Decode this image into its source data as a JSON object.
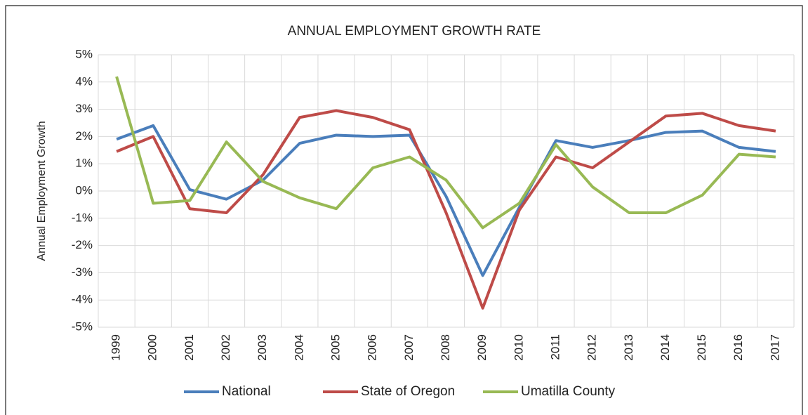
{
  "chart_data": {
    "type": "line",
    "title": "ANNUAL EMPLOYMENT GROWTH RATE",
    "y_label": "Annual Employment Growth",
    "categories": [
      "1999",
      "2000",
      "2001",
      "2002",
      "2003",
      "2004",
      "2005",
      "2006",
      "2007",
      "2008",
      "2009",
      "2010",
      "2011",
      "2012",
      "2013",
      "2014",
      "2015",
      "2016",
      "2017"
    ],
    "series": [
      {
        "name": "National",
        "color": "#4a7ebb",
        "values": [
          1.9,
          2.4,
          0.05,
          -0.3,
          0.4,
          1.75,
          2.05,
          2.0,
          2.05,
          -0.2,
          -3.1,
          -0.6,
          1.85,
          1.6,
          1.85,
          2.15,
          2.2,
          1.6,
          1.45
        ]
      },
      {
        "name": "State of Oregon",
        "color": "#be4b48",
        "values": [
          1.45,
          2.0,
          -0.65,
          -0.8,
          0.6,
          2.7,
          2.95,
          2.7,
          2.25,
          -0.8,
          -4.3,
          -0.7,
          1.25,
          0.85,
          1.8,
          2.75,
          2.85,
          2.4,
          2.2
        ]
      },
      {
        "name": "Umatilla County",
        "color": "#98b954",
        "values": [
          4.2,
          -0.45,
          -0.35,
          1.8,
          0.35,
          -0.25,
          -0.65,
          0.85,
          1.25,
          0.4,
          -1.35,
          -0.45,
          1.7,
          0.15,
          -0.8,
          -0.8,
          -0.15,
          1.35,
          1.25
        ]
      }
    ],
    "ylim": [
      -5,
      5
    ],
    "yticks": [
      {
        "value": -5,
        "label": "-5%"
      },
      {
        "value": -4,
        "label": "-4%"
      },
      {
        "value": -3,
        "label": "-3%"
      },
      {
        "value": -2,
        "label": "-2%"
      },
      {
        "value": -1,
        "label": "-1%"
      },
      {
        "value": 0,
        "label": "0%"
      },
      {
        "value": 1,
        "label": "1%"
      },
      {
        "value": 2,
        "label": "2%"
      },
      {
        "value": 3,
        "label": "3%"
      },
      {
        "value": 4,
        "label": "4%"
      },
      {
        "value": 5,
        "label": "5%"
      }
    ],
    "grid": true,
    "legend": "bottom"
  }
}
